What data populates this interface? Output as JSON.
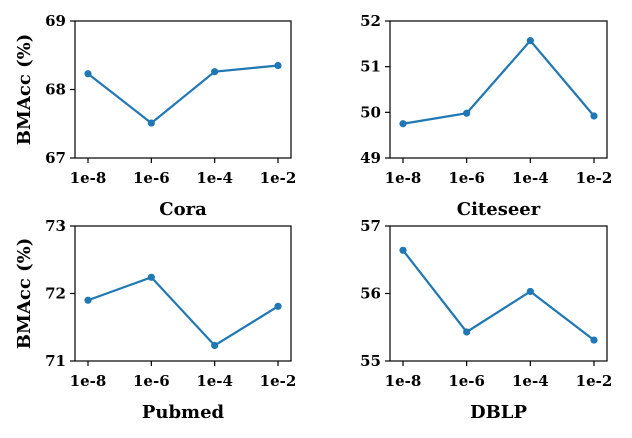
{
  "ylabel": "BMAcc (%)",
  "chart_data": [
    {
      "type": "line",
      "xlabel": "Cora",
      "ylabel": "BMAcc (%)",
      "categories": [
        "1e-8",
        "1e-6",
        "1e-4",
        "1e-2"
      ],
      "values": [
        68.23,
        67.51,
        68.26,
        68.35
      ],
      "ylim": [
        67,
        69
      ],
      "yticks": [
        "67",
        "68",
        "69"
      ],
      "color": "#1f77b4"
    },
    {
      "type": "line",
      "xlabel": "Citeseer",
      "ylabel": "",
      "categories": [
        "1e-8",
        "1e-6",
        "1e-4",
        "1e-2"
      ],
      "values": [
        49.75,
        49.98,
        51.57,
        49.92
      ],
      "ylim": [
        49,
        52
      ],
      "yticks": [
        "49",
        "50",
        "51",
        "52"
      ],
      "color": "#1f77b4"
    },
    {
      "type": "line",
      "xlabel": "Pubmed",
      "ylabel": "BMAcc (%)",
      "categories": [
        "1e-8",
        "1e-6",
        "1e-4",
        "1e-2"
      ],
      "values": [
        71.9,
        72.24,
        71.23,
        71.81
      ],
      "ylim": [
        71,
        73
      ],
      "yticks": [
        "71",
        "72",
        "73"
      ],
      "color": "#1f77b4"
    },
    {
      "type": "line",
      "xlabel": "DBLP",
      "ylabel": "",
      "categories": [
        "1e-8",
        "1e-6",
        "1e-4",
        "1e-2"
      ],
      "values": [
        56.64,
        55.43,
        56.03,
        55.31
      ],
      "ylim": [
        55,
        57
      ],
      "yticks": [
        "55",
        "56",
        "57"
      ],
      "color": "#1f77b4"
    }
  ]
}
